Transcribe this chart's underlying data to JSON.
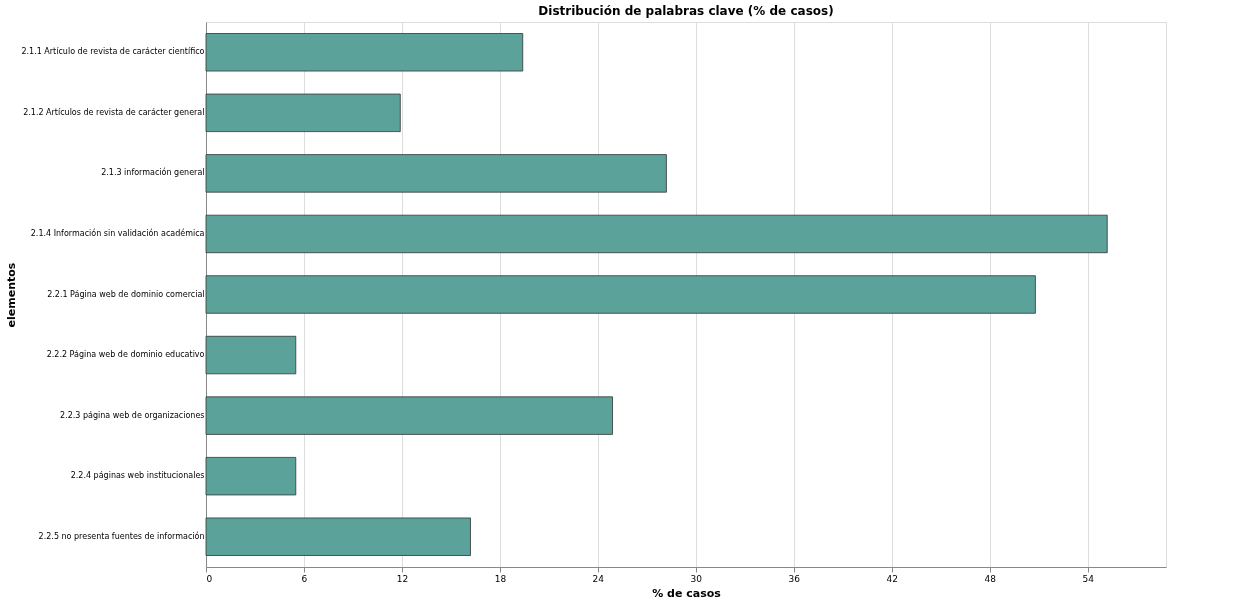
{
  "chart_data": {
    "type": "bar",
    "orientation": "horizontal",
    "title": "Distribución de palabras clave (% de casos)",
    "xlabel": "% de casos",
    "ylabel": "elementos",
    "categories": [
      "2.1.1 Artículo de revista de carácter científico",
      "2.1.2 Artículos de revista de carácter general",
      "2.1.3 información general",
      "2.1.4 Información sin validación académica",
      "2.2.1 Página web de dominio comercial",
      "2.2.2 Página web de dominio educativo",
      "2.2.3 página web de organizaciones",
      "2.2.4 páginas web institucionales",
      "2.2.5 no presenta fuentes de información"
    ],
    "values": [
      19.4,
      11.9,
      28.2,
      55.2,
      50.8,
      5.5,
      24.9,
      5.5,
      16.2
    ],
    "color": "#5ba39a",
    "xlim": [
      0,
      58.8
    ],
    "xticks": [
      0,
      6,
      12,
      18,
      24,
      30,
      36,
      42,
      48,
      54
    ],
    "grid": "x"
  }
}
